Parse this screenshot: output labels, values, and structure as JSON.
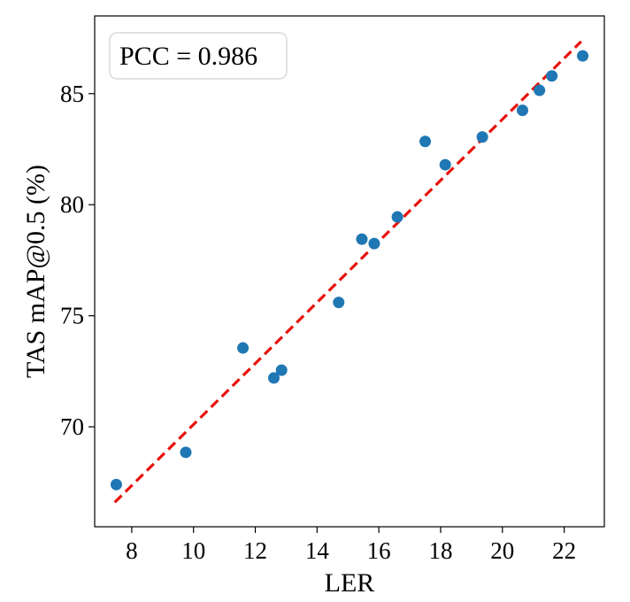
{
  "chart_data": {
    "type": "scatter",
    "title": "",
    "xlabel": "LER",
    "ylabel": "TAS mAP@0.5 (%)",
    "xlim": [
      6.8,
      23.3
    ],
    "ylim": [
      65.5,
      88.5
    ],
    "xticks": [
      8,
      10,
      12,
      14,
      16,
      18,
      20,
      22
    ],
    "yticks": [
      70,
      75,
      80,
      85
    ],
    "grid": false,
    "annotation": "PCC = 0.986",
    "annotation_location": "top-left",
    "colors": {
      "points": "#1f77b4",
      "fit_line": "#e8120c",
      "axes": "#000000"
    },
    "series": [
      {
        "name": "samples",
        "points": [
          {
            "x": 7.5,
            "y": 67.4
          },
          {
            "x": 9.75,
            "y": 68.85
          },
          {
            "x": 11.6,
            "y": 73.55
          },
          {
            "x": 12.6,
            "y": 72.2
          },
          {
            "x": 12.85,
            "y": 72.55
          },
          {
            "x": 14.7,
            "y": 75.6
          },
          {
            "x": 15.45,
            "y": 78.45
          },
          {
            "x": 15.85,
            "y": 78.25
          },
          {
            "x": 16.6,
            "y": 79.45
          },
          {
            "x": 17.5,
            "y": 82.85
          },
          {
            "x": 18.15,
            "y": 81.8
          },
          {
            "x": 19.35,
            "y": 83.05
          },
          {
            "x": 20.65,
            "y": 84.25
          },
          {
            "x": 21.2,
            "y": 85.15
          },
          {
            "x": 21.6,
            "y": 85.8
          },
          {
            "x": 22.6,
            "y": 86.7
          }
        ]
      }
    ],
    "fit_line": {
      "style": "dashed",
      "x": [
        7.45,
        22.55
      ],
      "y": [
        66.6,
        87.35
      ]
    }
  }
}
